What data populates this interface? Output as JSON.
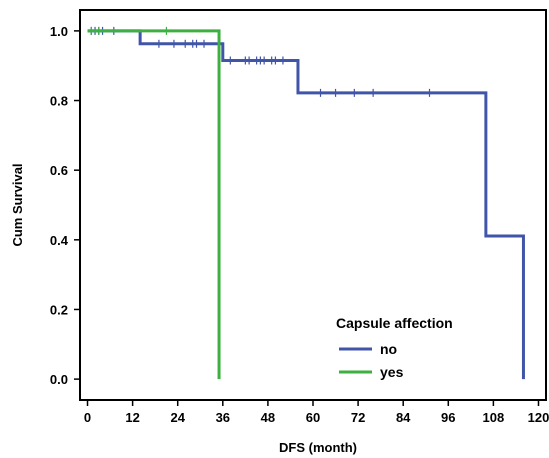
{
  "chart_data": {
    "type": "line",
    "subtype": "kaplan-meier",
    "xlabel": "DFS (month)",
    "ylabel": "Cum Survival",
    "xlim": [
      -2,
      122
    ],
    "ylim": [
      -0.06,
      1.06
    ],
    "xticks": [
      0,
      12,
      24,
      36,
      48,
      60,
      72,
      84,
      96,
      108,
      120
    ],
    "yticks": [
      0.0,
      0.2,
      0.4,
      0.6,
      0.8,
      1.0
    ],
    "ytick_labels": [
      "0.0",
      "0.2",
      "0.4",
      "0.6",
      "0.8",
      "1.0"
    ],
    "legend": {
      "title": "Capsule affection",
      "position": "bottom-right"
    },
    "series": [
      {
        "name": "no",
        "color": "#4055a8",
        "steps": [
          [
            0,
            1.0
          ],
          [
            14,
            0.963
          ],
          [
            36,
            0.915
          ],
          [
            56,
            0.822
          ],
          [
            106,
            0.411
          ],
          [
            116,
            0.0
          ]
        ],
        "end_x": 116,
        "censored": [
          [
            1,
            1.0
          ],
          [
            2,
            1.0
          ],
          [
            3,
            1.0
          ],
          [
            4,
            1.0
          ],
          [
            7,
            1.0
          ],
          [
            19,
            0.963
          ],
          [
            23,
            0.963
          ],
          [
            26,
            0.963
          ],
          [
            28,
            0.963
          ],
          [
            29,
            0.963
          ],
          [
            31,
            0.963
          ],
          [
            38,
            0.915
          ],
          [
            42,
            0.915
          ],
          [
            43,
            0.915
          ],
          [
            45,
            0.915
          ],
          [
            46,
            0.915
          ],
          [
            47,
            0.915
          ],
          [
            49,
            0.915
          ],
          [
            50,
            0.915
          ],
          [
            52,
            0.915
          ],
          [
            62,
            0.822
          ],
          [
            66,
            0.822
          ],
          [
            71,
            0.822
          ],
          [
            76,
            0.822
          ],
          [
            91,
            0.822
          ]
        ]
      },
      {
        "name": "yes",
        "color": "#3cb040",
        "steps": [
          [
            0,
            1.0
          ],
          [
            35,
            0.0
          ]
        ],
        "end_x": 35,
        "censored": [
          [
            1,
            1.0
          ],
          [
            3,
            1.0
          ],
          [
            21,
            1.0
          ]
        ]
      }
    ]
  }
}
